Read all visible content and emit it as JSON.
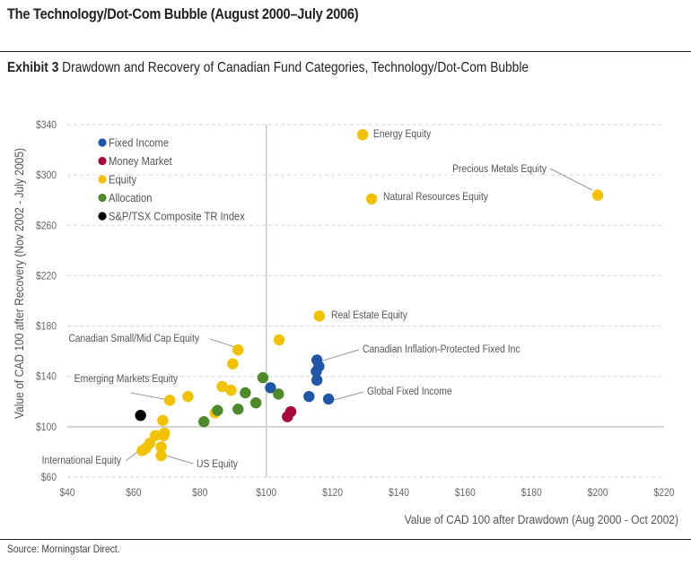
{
  "header": {
    "title": "The Technology/Dot-Com Bubble (August 2000–July 2006)",
    "exhibit_label": "Exhibit 3",
    "exhibit_title": "Drawdown and Recovery of Canadian Fund Categories, Technology/Dot-Com Bubble"
  },
  "footer": {
    "source": "Source: Morningstar Direct."
  },
  "chart_data": {
    "type": "scatter",
    "title": "Drawdown and Recovery of Canadian Fund Categories, Technology/Dot-Com Bubble",
    "xlabel": "Value of CAD 100 after Drawdown (Aug 2000 - Oct 2002)",
    "ylabel": "Value of CAD 100 after Recovery  (Nov 2002 - July 2005)",
    "xlim": [
      40,
      220
    ],
    "ylim": [
      60,
      340
    ],
    "x_ticks": [
      40,
      60,
      80,
      100,
      120,
      140,
      160,
      180,
      200,
      220
    ],
    "y_ticks": [
      60,
      100,
      140,
      180,
      220,
      260,
      300,
      340
    ],
    "x_tick_labels": [
      "$40",
      "$60",
      "$80",
      "$100",
      "$120",
      "$140",
      "$160",
      "$180",
      "$200",
      "$220"
    ],
    "y_tick_labels": [
      "$60",
      "$100",
      "$140",
      "$180",
      "$220",
      "$260",
      "$300",
      "$340"
    ],
    "grid": "horizontal dashed",
    "reference_lines": {
      "x": 100,
      "y": 100
    },
    "legend_position": "top-left",
    "series": [
      {
        "name": "Fixed Income",
        "color": "#1f56a8",
        "points": [
          [
            101.3,
            131
          ],
          [
            112.9,
            124
          ],
          [
            115.3,
            153
          ],
          [
            115.9,
            148
          ],
          [
            115.1,
            144
          ],
          [
            115.3,
            137
          ],
          [
            118.8,
            122
          ]
        ]
      },
      {
        "name": "Money Market",
        "color": "#a8073a",
        "points": [
          [
            107.4,
            112
          ],
          [
            106.4,
            108
          ]
        ]
      },
      {
        "name": "Equity",
        "color": "#f2c200",
        "points": [
          [
            129.1,
            332
          ],
          [
            200.0,
            284
          ],
          [
            131.8,
            281
          ],
          [
            116.0,
            188
          ],
          [
            103.9,
            169
          ],
          [
            91.5,
            161
          ],
          [
            89.9,
            150
          ],
          [
            70.9,
            121
          ],
          [
            76.4,
            124
          ],
          [
            86.7,
            132
          ],
          [
            89.4,
            129
          ],
          [
            84.6,
            111
          ],
          [
            68.8,
            105
          ],
          [
            66.6,
            93
          ],
          [
            69.3,
            95
          ],
          [
            69.1,
            93
          ],
          [
            64.9,
            87
          ],
          [
            68.3,
            84
          ],
          [
            63.7,
            83
          ],
          [
            62.6,
            81
          ],
          [
            68.3,
            77
          ]
        ]
      },
      {
        "name": "Allocation",
        "color": "#4e8a2c",
        "points": [
          [
            99.0,
            139
          ],
          [
            103.7,
            126
          ],
          [
            93.7,
            127
          ],
          [
            96.9,
            119
          ],
          [
            91.5,
            114
          ],
          [
            85.3,
            113
          ],
          [
            81.2,
            104
          ]
        ]
      },
      {
        "name": "S&P/TSX Composite TR Index",
        "color": "#000000",
        "points": [
          [
            62.1,
            109
          ]
        ]
      }
    ],
    "annotations": [
      {
        "text": "Energy Equity",
        "x": 129.1,
        "y": 332,
        "leader": false
      },
      {
        "text": "Precious Metals Equity",
        "x": 200.0,
        "y": 284,
        "leader": true
      },
      {
        "text": "Natural Resources Equity",
        "x": 131.8,
        "y": 281,
        "leader": false
      },
      {
        "text": "Real Estate Equity",
        "x": 116.0,
        "y": 188,
        "leader": false
      },
      {
        "text": "Canadian Small/Mid Cap Equity",
        "x": 91.5,
        "y": 161,
        "leader": true
      },
      {
        "text": "Canadian Inflation-Protected Fixed Inc",
        "x": 115.3,
        "y": 153,
        "leader": true
      },
      {
        "text": "Emerging Markets Equity",
        "x": 70.9,
        "y": 121,
        "leader": true
      },
      {
        "text": "Global Fixed Income",
        "x": 118.8,
        "y": 122,
        "leader": true
      },
      {
        "text": "International Equity",
        "x": 62.6,
        "y": 81,
        "leader": true
      },
      {
        "text": "US Equity",
        "x": 68.3,
        "y": 77,
        "leader": true
      }
    ]
  }
}
